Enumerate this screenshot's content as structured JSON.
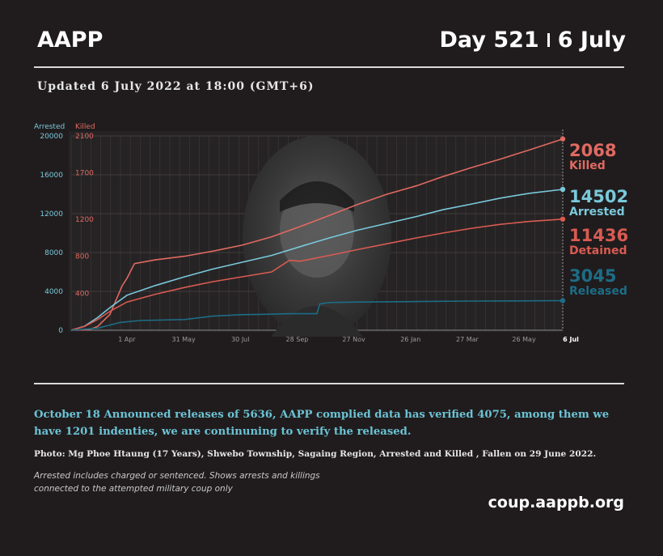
{
  "header": {
    "brand": "AAPP",
    "day": "Day 521",
    "date": "6 July",
    "updated": "Updated 6 July 2022 at 18:00 (GMT+6)"
  },
  "chart_data": {
    "type": "line",
    "axis_labels": {
      "left": "Arrested",
      "right": "Killed"
    },
    "y_left": {
      "ylim": [
        0,
        20000
      ],
      "ticks": [
        "0",
        "4000",
        "8000",
        "12000",
        "16000",
        "20000"
      ],
      "tick_values": [
        0,
        4000,
        8000,
        12000,
        16000,
        20000
      ]
    },
    "y_right": {
      "ylim": [
        0,
        2100
      ],
      "ticks": [
        "400",
        "800",
        "1200",
        "1700",
        "2100"
      ],
      "tick_values": [
        400,
        800,
        1200,
        1700,
        2100
      ]
    },
    "x_ticks": [
      {
        "label": "1 Apr",
        "date": "2021-04-01"
      },
      {
        "label": "31 May",
        "date": "2021-05-31"
      },
      {
        "label": "30 Jul",
        "date": "2021-07-30"
      },
      {
        "label": "28 Sep",
        "date": "2021-09-28"
      },
      {
        "label": "27 Nov",
        "date": "2021-11-27"
      },
      {
        "label": "26 Jan",
        "date": "2022-01-26"
      },
      {
        "label": "27 Mar",
        "date": "2022-03-27"
      },
      {
        "label": "26 May",
        "date": "2022-05-26"
      },
      {
        "label": "6 Jul",
        "date": "2022-07-06"
      }
    ],
    "x_range": [
      "2021-02-01",
      "2022-07-06"
    ],
    "grid": true,
    "series": [
      {
        "name": "Killed",
        "value_label": "2068",
        "axis": "right",
        "color": "#e06a62",
        "points": [
          [
            "2021-02-01",
            0
          ],
          [
            "2021-02-20",
            5
          ],
          [
            "2021-03-01",
            40
          ],
          [
            "2021-03-14",
            170
          ],
          [
            "2021-03-27",
            480
          ],
          [
            "2021-04-01",
            560
          ],
          [
            "2021-04-09",
            720
          ],
          [
            "2021-05-01",
            760
          ],
          [
            "2021-06-01",
            800
          ],
          [
            "2021-07-01",
            855
          ],
          [
            "2021-08-01",
            920
          ],
          [
            "2021-09-01",
            1010
          ],
          [
            "2021-10-01",
            1120
          ],
          [
            "2021-11-01",
            1240
          ],
          [
            "2021-12-01",
            1360
          ],
          [
            "2022-01-01",
            1470
          ],
          [
            "2022-02-01",
            1560
          ],
          [
            "2022-03-01",
            1660
          ],
          [
            "2022-04-01",
            1760
          ],
          [
            "2022-05-01",
            1850
          ],
          [
            "2022-06-01",
            1950
          ],
          [
            "2022-07-06",
            2068
          ]
        ]
      },
      {
        "name": "Arrested",
        "value_label": "14502",
        "axis": "left",
        "color": "#79c9db",
        "points": [
          [
            "2021-02-01",
            0
          ],
          [
            "2021-02-15",
            400
          ],
          [
            "2021-03-01",
            1300
          ],
          [
            "2021-03-15",
            2400
          ],
          [
            "2021-04-01",
            3600
          ],
          [
            "2021-05-01",
            4600
          ],
          [
            "2021-06-01",
            5500
          ],
          [
            "2021-07-01",
            6300
          ],
          [
            "2021-08-01",
            7000
          ],
          [
            "2021-09-01",
            7700
          ],
          [
            "2021-10-01",
            8600
          ],
          [
            "2021-11-01",
            9500
          ],
          [
            "2021-12-01",
            10300
          ],
          [
            "2022-01-01",
            11000
          ],
          [
            "2022-02-01",
            11700
          ],
          [
            "2022-03-01",
            12400
          ],
          [
            "2022-04-01",
            13000
          ],
          [
            "2022-05-01",
            13600
          ],
          [
            "2022-06-01",
            14100
          ],
          [
            "2022-07-06",
            14502
          ]
        ]
      },
      {
        "name": "Detained",
        "value_label": "11436",
        "axis": "left",
        "color": "#d95b52",
        "points": [
          [
            "2021-02-01",
            0
          ],
          [
            "2021-02-15",
            380
          ],
          [
            "2021-03-01",
            1100
          ],
          [
            "2021-03-15",
            2000
          ],
          [
            "2021-04-01",
            2900
          ],
          [
            "2021-05-01",
            3700
          ],
          [
            "2021-06-01",
            4400
          ],
          [
            "2021-07-01",
            5000
          ],
          [
            "2021-08-01",
            5500
          ],
          [
            "2021-09-01",
            6000
          ],
          [
            "2021-09-20",
            7200
          ],
          [
            "2021-10-01",
            7100
          ],
          [
            "2021-11-01",
            7700
          ],
          [
            "2021-12-01",
            8300
          ],
          [
            "2022-01-01",
            8900
          ],
          [
            "2022-02-01",
            9500
          ],
          [
            "2022-03-01",
            10000
          ],
          [
            "2022-04-01",
            10500
          ],
          [
            "2022-05-01",
            10900
          ],
          [
            "2022-06-01",
            11200
          ],
          [
            "2022-07-06",
            11436
          ]
        ]
      },
      {
        "name": "Released",
        "value_label": "3045",
        "axis": "left",
        "color": "#1d6d86",
        "points": [
          [
            "2021-02-01",
            0
          ],
          [
            "2021-03-01",
            200
          ],
          [
            "2021-03-25",
            800
          ],
          [
            "2021-04-15",
            1000
          ],
          [
            "2021-06-01",
            1100
          ],
          [
            "2021-07-01",
            1450
          ],
          [
            "2021-08-01",
            1600
          ],
          [
            "2021-09-01",
            1650
          ],
          [
            "2021-09-20",
            1700
          ],
          [
            "2021-10-19",
            1700
          ],
          [
            "2021-10-22",
            2700
          ],
          [
            "2021-11-01",
            2850
          ],
          [
            "2021-12-01",
            2900
          ],
          [
            "2022-02-01",
            2950
          ],
          [
            "2022-04-01",
            3000
          ],
          [
            "2022-07-06",
            3045
          ]
        ]
      }
    ]
  },
  "note": "October 18 Announced releases of 5636, AAPP complied data has verified 4075, among them we have 1201 indenties, we are continuning to verify the released.",
  "photo_caption": "Photo:  Mg Phoe Htaung (17 Years), Shwebo Township, Sagaing Region, Arrested and Killed , Fallen on 29 June 2022.",
  "footnote_line1": "Arrested includes charged or sentenced. Shows arrests and killings",
  "footnote_line2": "connected to the attempted military coup only",
  "site": "coup.aappb.org"
}
